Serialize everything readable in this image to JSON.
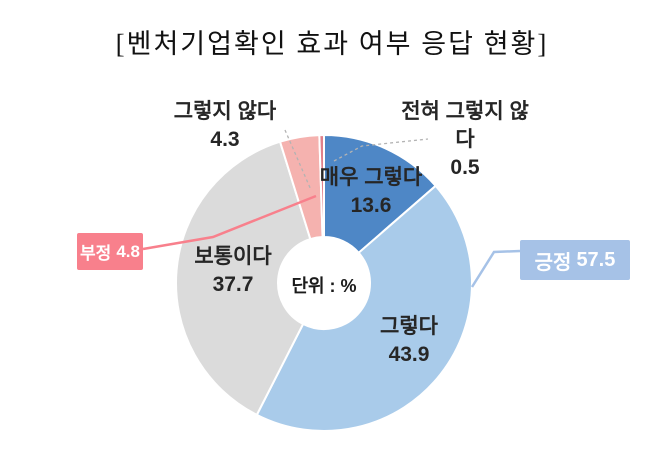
{
  "title": "[벤처기업확인 효과 여부 응답 현황]",
  "chart_data": {
    "type": "pie",
    "subtype": "donut",
    "title": "[벤처기업확인 효과 여부 응답 현황]",
    "unit_label": "단위 : %",
    "start_angle_deg": 0,
    "direction": "clockwise",
    "legend_position": "none",
    "segments": [
      {
        "label": "매우 그렇다",
        "value": 13.6,
        "color": "#4E87C6"
      },
      {
        "label": "그렇다",
        "value": 43.9,
        "color": "#A9CBEA"
      },
      {
        "label": "보통이다",
        "value": 37.7,
        "color": "#DBDBDB"
      },
      {
        "label": "그렇지 않다",
        "value": 4.3,
        "color": "#F5B2AF"
      },
      {
        "label": "전혀 그렇지 않다",
        "value": 0.5,
        "color": "#E0808A"
      }
    ],
    "callouts": [
      {
        "label": "긍정",
        "value": 57.5,
        "color": "#A6C2E7"
      },
      {
        "label": "부정",
        "value": 4.8,
        "color": "#F8808C"
      }
    ]
  }
}
